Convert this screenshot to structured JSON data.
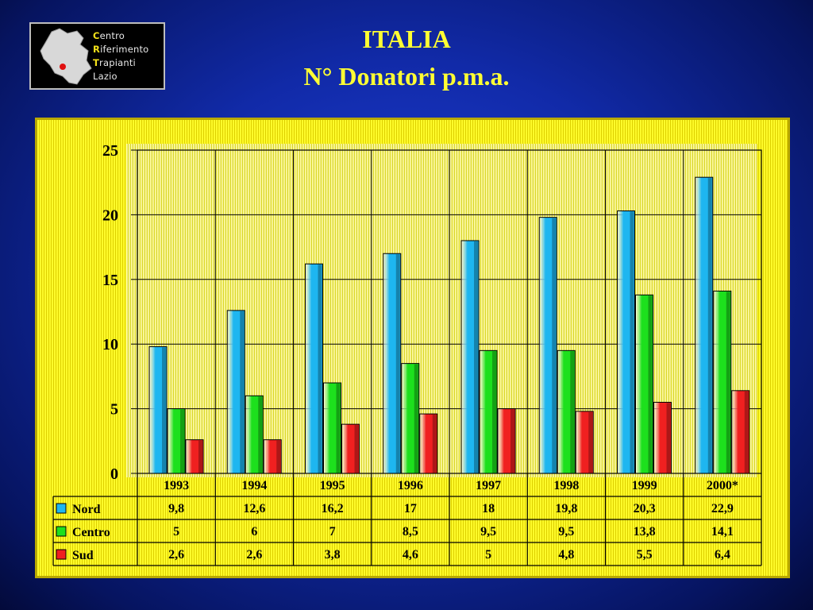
{
  "logo": {
    "lines": [
      {
        "cap": "C",
        "rest": "entro"
      },
      {
        "cap": "R",
        "rest": "iferimento"
      },
      {
        "cap": "T",
        "rest": "rapianti"
      },
      {
        "cap": "",
        "rest": "Lazio"
      }
    ]
  },
  "title": {
    "line1": "ITALIA",
    "line2": "N° Donatori p.m.a."
  },
  "chart_data": {
    "type": "bar",
    "categories": [
      "1993",
      "1994",
      "1995",
      "1996",
      "1997",
      "1998",
      "1999",
      "2000*"
    ],
    "ylim": [
      0,
      25
    ],
    "yticks": [
      "0",
      "5",
      "10",
      "15",
      "20",
      "25"
    ],
    "grid": true,
    "series": [
      {
        "name": "Nord",
        "color": "#1eb6f0",
        "values": [
          9.8,
          12.6,
          16.2,
          17,
          18,
          19.8,
          20.3,
          22.9
        ],
        "labels": [
          "9,8",
          "12,6",
          "16,2",
          "17",
          "18",
          "19,8",
          "20,3",
          "22,9"
        ]
      },
      {
        "name": "Centro",
        "color": "#1de01d",
        "values": [
          5,
          6,
          7,
          8.5,
          9.5,
          9.5,
          13.8,
          14.1
        ],
        "labels": [
          "5",
          "6",
          "7",
          "8,5",
          "9,5",
          "9,5",
          "13,8",
          "14,1"
        ]
      },
      {
        "name": "Sud",
        "color": "#f02020",
        "values": [
          2.6,
          2.6,
          3.8,
          4.6,
          5,
          4.8,
          5.5,
          6.4
        ],
        "labels": [
          "2,6",
          "2,6",
          "3,8",
          "4,6",
          "5",
          "4,8",
          "5,5",
          "6,4"
        ]
      }
    ]
  }
}
